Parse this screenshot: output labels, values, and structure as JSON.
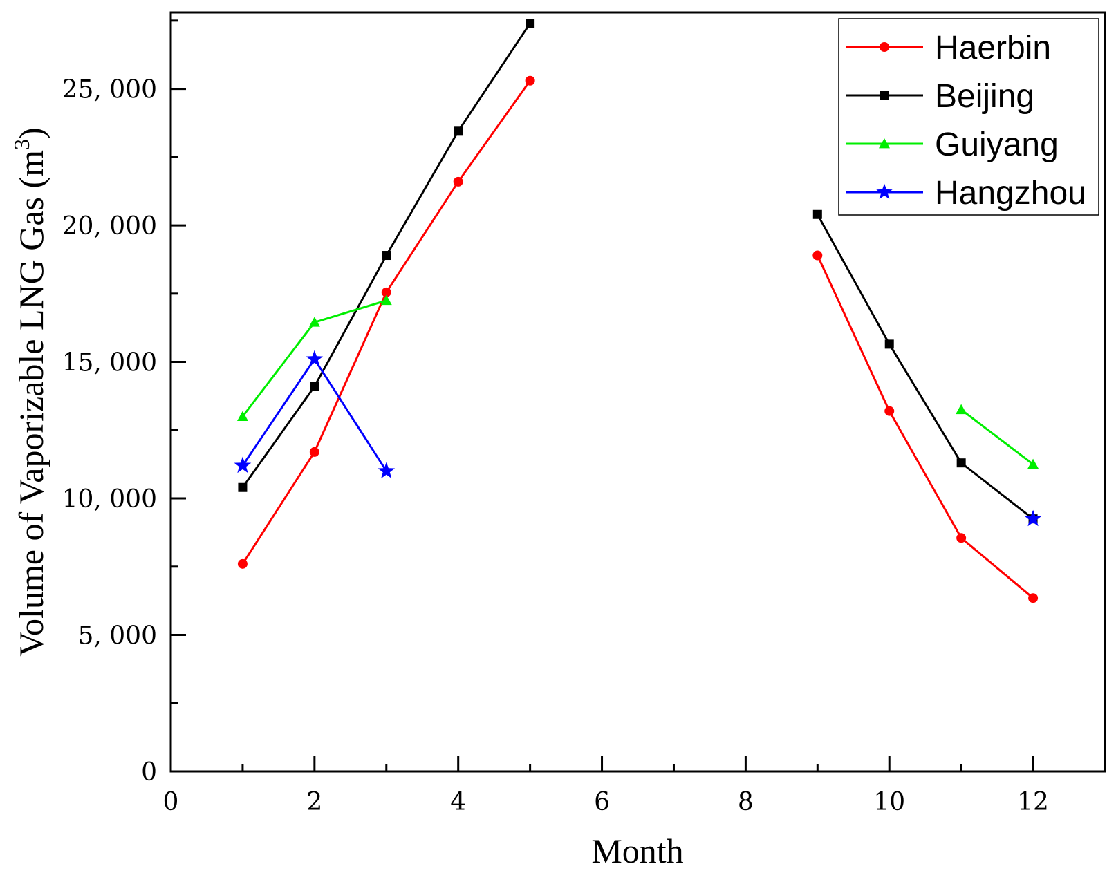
{
  "chart_data": {
    "type": "line",
    "xlabel": "Month",
    "ylabel": "Volume of Vaporizable LNG Gas (m",
    "ylabel_sup": "3",
    "ylabel_close": ")",
    "xlim": [
      0,
      13
    ],
    "ylim": [
      0,
      27800
    ],
    "x_ticks": [
      0,
      2,
      4,
      6,
      8,
      10,
      12
    ],
    "x_tick_labels": [
      "0",
      "2",
      "4",
      "6",
      "8",
      "10",
      "12"
    ],
    "y_ticks": [
      0,
      5000,
      10000,
      15000,
      20000,
      25000
    ],
    "y_tick_labels": [
      "0",
      "5, 000",
      "10, 000",
      "15, 000",
      "20, 000",
      "25, 000"
    ],
    "grid": false,
    "legend_position": "top-right",
    "series": [
      {
        "name": "Haerbin",
        "color": "#ff0000",
        "marker": "circle",
        "segments": [
          [
            [
              1,
              7600
            ],
            [
              2,
              11700
            ],
            [
              3,
              17550
            ],
            [
              4,
              21600
            ],
            [
              5,
              25300
            ]
          ],
          [
            [
              9,
              18900
            ],
            [
              10,
              13200
            ],
            [
              11,
              8550
            ],
            [
              12,
              6350
            ]
          ]
        ]
      },
      {
        "name": "Beijing",
        "color": "#000000",
        "marker": "square",
        "segments": [
          [
            [
              1,
              10400
            ],
            [
              2,
              14100
            ],
            [
              3,
              18900
            ],
            [
              4,
              23450
            ],
            [
              5,
              27400
            ]
          ],
          [
            [
              9,
              20400
            ],
            [
              10,
              15650
            ],
            [
              11,
              11300
            ],
            [
              12,
              9250
            ]
          ]
        ]
      },
      {
        "name": "Guiyang",
        "color": "#00ee00",
        "marker": "triangle",
        "segments": [
          [
            [
              1,
              13000
            ],
            [
              2,
              16450
            ],
            [
              3,
              17250
            ]
          ],
          [
            [
              11,
              13250
            ],
            [
              12,
              11250
            ]
          ]
        ]
      },
      {
        "name": "Hangzhou",
        "color": "#0000ff",
        "marker": "star",
        "segments": [
          [
            [
              1,
              11200
            ],
            [
              2,
              15100
            ],
            [
              3,
              11000
            ]
          ],
          [
            [
              12,
              9250
            ]
          ]
        ]
      }
    ]
  }
}
